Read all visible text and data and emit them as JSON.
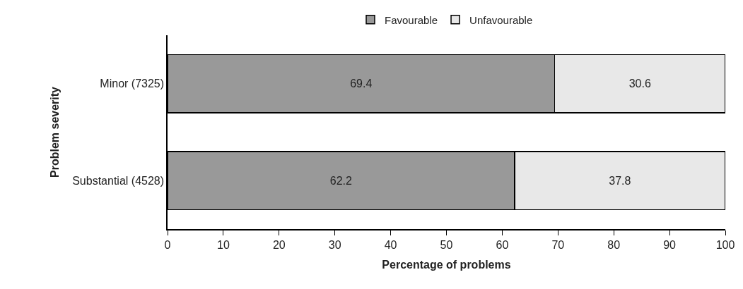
{
  "chart_data": {
    "type": "bar",
    "orientation": "horizontal",
    "stacked": true,
    "categories": [
      "Minor (7325)",
      "Substantial (4528)"
    ],
    "series": [
      {
        "name": "Favourable",
        "color": "#999999",
        "values": [
          69.4,
          62.2
        ]
      },
      {
        "name": "Unfavourable",
        "color": "#e8e8e8",
        "values": [
          30.6,
          37.8
        ]
      }
    ],
    "xlim": [
      0,
      100
    ],
    "xticks": [
      0,
      10,
      20,
      30,
      40,
      50,
      60,
      70,
      80,
      90,
      100
    ],
    "xlabel": "Percentage of problems",
    "ylabel": "Problem severity",
    "data_labels": true,
    "legend": "top"
  }
}
